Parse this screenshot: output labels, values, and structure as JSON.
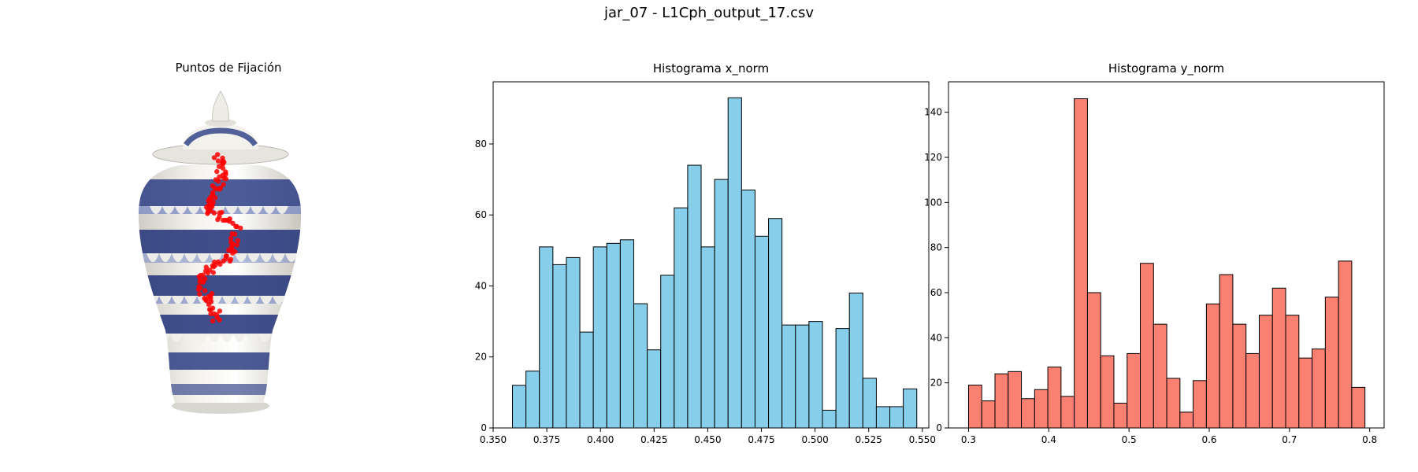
{
  "suptitle": "jar_07 - L1Cph_output_17.csv",
  "image_panel": {
    "title": "Puntos de Fijación",
    "subject": "blue-and-white porcelain ginger jar with lid",
    "marker_color": "#ff0000"
  },
  "chart_data": [
    {
      "type": "bar",
      "title": "Histograma x_norm",
      "xlabel": "",
      "ylabel": "",
      "color": "#87ceeb",
      "edgecolor": "#000000",
      "xlim": [
        0.35,
        0.553
      ],
      "ylim": [
        0,
        97.5
      ],
      "xticks": [
        "0.350",
        "0.375",
        "0.400",
        "0.425",
        "0.450",
        "0.475",
        "0.500",
        "0.525",
        "0.550"
      ],
      "yticks": [
        "0",
        "20",
        "40",
        "60",
        "80"
      ],
      "bin_start": 0.359,
      "bin_width": 0.00628,
      "values": [
        12,
        16,
        51,
        46,
        48,
        27,
        51,
        52,
        53,
        35,
        22,
        43,
        62,
        74,
        51,
        70,
        93,
        67,
        54,
        59,
        29,
        29,
        30,
        5,
        28,
        38,
        14,
        6,
        6,
        11
      ]
    },
    {
      "type": "bar",
      "title": "Histograma y_norm",
      "xlabel": "",
      "ylabel": "",
      "color": "#fa8072",
      "edgecolor": "#000000",
      "xlim": [
        0.275,
        0.818
      ],
      "ylim": [
        0,
        153.5
      ],
      "xticks": [
        "0.3",
        "0.4",
        "0.5",
        "0.6",
        "0.7",
        "0.8"
      ],
      "yticks": [
        "0",
        "20",
        "40",
        "60",
        "80",
        "100",
        "120",
        "140"
      ],
      "bin_start": 0.3,
      "bin_width": 0.01647,
      "values": [
        19,
        12,
        24,
        25,
        13,
        17,
        27,
        14,
        146,
        60,
        32,
        11,
        33,
        73,
        46,
        22,
        7,
        21,
        55,
        68,
        46,
        33,
        50,
        62,
        50,
        31,
        35,
        58,
        74,
        18
      ]
    }
  ]
}
